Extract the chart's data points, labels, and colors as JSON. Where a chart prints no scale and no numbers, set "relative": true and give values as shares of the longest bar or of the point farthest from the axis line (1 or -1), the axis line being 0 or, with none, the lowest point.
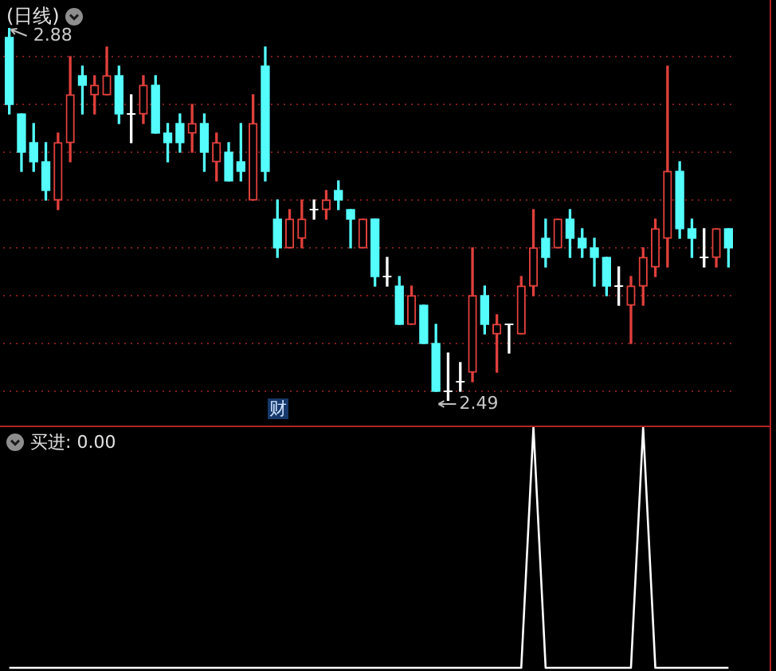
{
  "chart_data": [
    {
      "type": "candlestick",
      "title": "(日线)",
      "categories": [
        null,
        null,
        null,
        null,
        null,
        null,
        null,
        null,
        null,
        null,
        null,
        null,
        null,
        null,
        null,
        null,
        null,
        null,
        null,
        null,
        null,
        null,
        null,
        null,
        null,
        null,
        null,
        null,
        null,
        null,
        null,
        null,
        null,
        null,
        null,
        null,
        null,
        null,
        null,
        null,
        null,
        null,
        null,
        null,
        null,
        null,
        null,
        null,
        null,
        null,
        null,
        null,
        null,
        null,
        null,
        null,
        null,
        null,
        null,
        null
      ],
      "ohlc": [
        [
          2.87,
          2.88,
          2.79,
          2.8
        ],
        [
          2.79,
          2.79,
          2.73,
          2.75
        ],
        [
          2.76,
          2.78,
          2.73,
          2.74
        ],
        [
          2.74,
          2.76,
          2.7,
          2.71
        ],
        [
          2.7,
          2.77,
          2.69,
          2.76
        ],
        [
          2.76,
          2.85,
          2.74,
          2.81
        ],
        [
          2.83,
          2.84,
          2.79,
          2.82
        ],
        [
          2.81,
          2.83,
          2.79,
          2.82
        ],
        [
          2.81,
          2.86,
          2.81,
          2.83
        ],
        [
          2.83,
          2.84,
          2.78,
          2.79
        ],
        [
          2.79,
          2.81,
          2.76,
          2.79
        ],
        [
          2.79,
          2.83,
          2.78,
          2.82
        ],
        [
          2.82,
          2.83,
          2.77,
          2.77
        ],
        [
          2.77,
          2.78,
          2.74,
          2.76
        ],
        [
          2.78,
          2.79,
          2.75,
          2.76
        ],
        [
          2.77,
          2.8,
          2.75,
          2.78
        ],
        [
          2.78,
          2.79,
          2.73,
          2.75
        ],
        [
          2.74,
          2.77,
          2.72,
          2.76
        ],
        [
          2.75,
          2.76,
          2.72,
          2.72
        ],
        [
          2.74,
          2.78,
          2.72,
          2.73
        ],
        [
          2.7,
          2.81,
          2.7,
          2.78
        ],
        [
          2.84,
          2.86,
          2.72,
          2.73
        ],
        [
          2.68,
          2.7,
          2.64,
          2.65
        ],
        [
          2.65,
          2.69,
          2.65,
          2.68
        ],
        [
          2.66,
          2.7,
          2.65,
          2.68
        ],
        [
          2.69,
          2.7,
          2.68,
          2.69
        ],
        [
          2.69,
          2.71,
          2.68,
          2.7
        ],
        [
          2.71,
          2.72,
          2.69,
          2.7
        ],
        [
          2.69,
          2.69,
          2.65,
          2.68
        ],
        [
          2.65,
          2.68,
          2.65,
          2.68
        ],
        [
          2.68,
          2.68,
          2.61,
          2.62
        ],
        [
          2.62,
          2.64,
          2.61,
          2.62
        ],
        [
          2.61,
          2.62,
          2.57,
          2.57
        ],
        [
          2.57,
          2.61,
          2.57,
          2.6
        ],
        [
          2.59,
          2.59,
          2.55,
          2.55
        ],
        [
          2.55,
          2.57,
          2.5,
          2.5
        ],
        [
          2.5,
          2.54,
          2.49,
          2.5
        ],
        [
          2.51,
          2.53,
          2.5,
          2.51
        ],
        [
          2.52,
          2.65,
          2.51,
          2.6
        ],
        [
          2.6,
          2.61,
          2.56,
          2.57
        ],
        [
          2.56,
          2.58,
          2.52,
          2.57
        ],
        [
          2.57,
          2.57,
          2.54,
          2.57
        ],
        [
          2.56,
          2.62,
          2.56,
          2.61
        ],
        [
          2.61,
          2.69,
          2.6,
          2.65
        ],
        [
          2.66,
          2.68,
          2.63,
          2.64
        ],
        [
          2.65,
          2.68,
          2.65,
          2.68
        ],
        [
          2.68,
          2.69,
          2.64,
          2.66
        ],
        [
          2.66,
          2.67,
          2.64,
          2.65
        ],
        [
          2.65,
          2.66,
          2.61,
          2.64
        ],
        [
          2.64,
          2.64,
          2.6,
          2.61
        ],
        [
          2.61,
          2.63,
          2.59,
          2.61
        ],
        [
          2.59,
          2.62,
          2.55,
          2.61
        ],
        [
          2.61,
          2.65,
          2.59,
          2.64
        ],
        [
          2.63,
          2.68,
          2.62,
          2.67
        ],
        [
          2.66,
          2.84,
          2.63,
          2.73
        ],
        [
          2.73,
          2.74,
          2.66,
          2.67
        ],
        [
          2.67,
          2.68,
          2.64,
          2.66
        ],
        [
          2.64,
          2.67,
          2.63,
          2.64
        ],
        [
          2.64,
          2.67,
          2.63,
          2.67
        ],
        [
          2.67,
          2.67,
          2.63,
          2.65
        ]
      ],
      "colors": [
        "#54fcfc",
        "#54fcfc",
        "#54fcfc",
        "#54fcfc",
        "#e0403c",
        "#e0403c",
        "#54fcfc",
        "#e0403c",
        "#e0403c",
        "#54fcfc",
        "#ffffff",
        "#e0403c",
        "#54fcfc",
        "#54fcfc",
        "#54fcfc",
        "#e0403c",
        "#54fcfc",
        "#e0403c",
        "#54fcfc",
        "#54fcfc",
        "#e0403c",
        "#54fcfc",
        "#54fcfc",
        "#e0403c",
        "#e0403c",
        "#ffffff",
        "#e0403c",
        "#54fcfc",
        "#54fcfc",
        "#e0403c",
        "#54fcfc",
        "#ffffff",
        "#54fcfc",
        "#e0403c",
        "#54fcfc",
        "#54fcfc",
        "#ffffff",
        "#ffffff",
        "#e0403c",
        "#54fcfc",
        "#e0403c",
        "#ffffff",
        "#e0403c",
        "#e0403c",
        "#54fcfc",
        "#e0403c",
        "#54fcfc",
        "#54fcfc",
        "#54fcfc",
        "#54fcfc",
        "#ffffff",
        "#e0403c",
        "#e0403c",
        "#e0403c",
        "#e0403c",
        "#54fcfc",
        "#54fcfc",
        "#ffffff",
        "#e0403c",
        "#54fcfc"
      ],
      "yticks": [
        {
          "value": 2.5,
          "label": null
        },
        {
          "value": 2.55,
          "label": null
        },
        {
          "value": 2.6,
          "label": null
        },
        {
          "value": 2.65,
          "label": null
        },
        {
          "value": 2.7,
          "label": null
        },
        {
          "value": 2.75,
          "label": null
        },
        {
          "value": 2.8,
          "label": null
        },
        {
          "value": 2.85,
          "label": null
        }
      ],
      "grid": "y",
      "tick_labels": false,
      "annotations": [
        "2.88",
        "2.49",
        "财"
      ]
    },
    {
      "type": "line",
      "title": "买进: 0.00",
      "categories": [
        null,
        null,
        null,
        null,
        null,
        null,
        null,
        null,
        null,
        null,
        null,
        null,
        null,
        null,
        null,
        null,
        null,
        null,
        null,
        null,
        null,
        null,
        null,
        null,
        null,
        null,
        null,
        null,
        null,
        null,
        null,
        null,
        null,
        null,
        null,
        null,
        null,
        null,
        null,
        null,
        null,
        null,
        null,
        null,
        null,
        null,
        null,
        null,
        null,
        null,
        null,
        null,
        null,
        null,
        null,
        null,
        null,
        null,
        null,
        null
      ],
      "values": [
        0,
        0,
        0,
        0,
        0,
        0,
        0,
        0,
        0,
        0,
        0,
        0,
        0,
        0,
        0,
        0,
        0,
        0,
        0,
        0,
        0,
        0,
        0,
        0,
        0,
        0,
        0,
        0,
        0,
        0,
        0,
        0,
        0,
        0,
        0,
        0,
        0,
        0,
        0,
        0,
        0,
        0,
        0,
        1,
        0,
        0,
        0,
        0,
        0,
        0,
        0,
        0,
        1,
        0,
        0,
        0,
        0,
        0,
        0,
        0
      ],
      "color": "#ffffff",
      "relative": true,
      "tick_labels": false
    }
  ]
}
